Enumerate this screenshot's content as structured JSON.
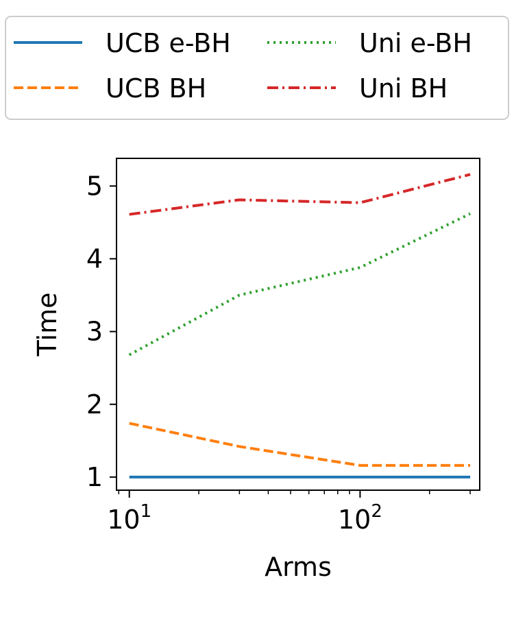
{
  "chart_data": {
    "type": "line",
    "xlabel": "Arms",
    "ylabel": "Time",
    "xscale": "log",
    "xlim": [
      8.8,
      330
    ],
    "ylim": [
      0.82,
      5.38
    ],
    "x_ticks": [
      {
        "value": 10,
        "base": "10",
        "exp": "1"
      },
      {
        "value": 100,
        "base": "10",
        "exp": "2"
      }
    ],
    "y_ticks": [
      1,
      2,
      3,
      4,
      5
    ],
    "legend_placement": "top (above plot), 2 columns",
    "grid": false,
    "series": [
      {
        "name": "UCB e-BH",
        "color": "#1f77b4",
        "dash": "solid",
        "x": [
          10,
          30,
          100,
          300
        ],
        "y": [
          1.0,
          1.0,
          1.0,
          1.0
        ]
      },
      {
        "name": "UCB BH",
        "color": "#ff7f0e",
        "dash": "dashed",
        "x": [
          10,
          30,
          100,
          300
        ],
        "y": [
          1.74,
          1.42,
          1.16,
          1.16
        ]
      },
      {
        "name": "Uni e-BH",
        "color": "#2ca02c",
        "dash": "dotted",
        "x": [
          10,
          30,
          100,
          300
        ],
        "y": [
          2.68,
          3.5,
          3.88,
          4.62
        ]
      },
      {
        "name": "Uni BH",
        "color": "#d62728",
        "dash": "dashdot",
        "x": [
          10,
          30,
          100,
          300
        ],
        "y": [
          4.61,
          4.81,
          4.77,
          5.16
        ]
      }
    ]
  }
}
